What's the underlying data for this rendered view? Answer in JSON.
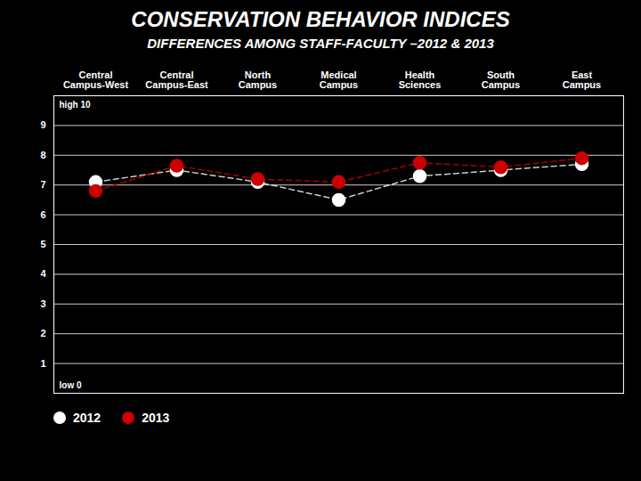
{
  "chart_data": {
    "type": "line",
    "title": "CONSERVATION BEHAVIOR INDICES",
    "subtitle": "DIFFERENCES AMONG STAFF-FACULTY –2012 & 2013",
    "categories": [
      "Central\nCampus-West",
      "Central\nCampus-East",
      "North\nCampus",
      "Medical\nCampus",
      "Health\nSciences",
      "South\nCampus",
      "East\nCampus"
    ],
    "series": [
      {
        "name": "2012",
        "color": "#ffffff",
        "values": [
          7.1,
          7.5,
          7.1,
          6.5,
          7.3,
          7.5,
          7.7
        ]
      },
      {
        "name": "2013",
        "color": "#cc0000",
        "values": [
          6.8,
          7.65,
          7.2,
          7.1,
          7.75,
          7.6,
          7.9
        ]
      }
    ],
    "ylim": [
      0,
      10
    ],
    "yticks": [
      1,
      2,
      3,
      4,
      5,
      6,
      7,
      8,
      9
    ],
    "grid": true,
    "legend": "lower left",
    "marker": "o",
    "line_style": "dashed",
    "annotations": [
      "high 10",
      "low 0"
    ]
  }
}
